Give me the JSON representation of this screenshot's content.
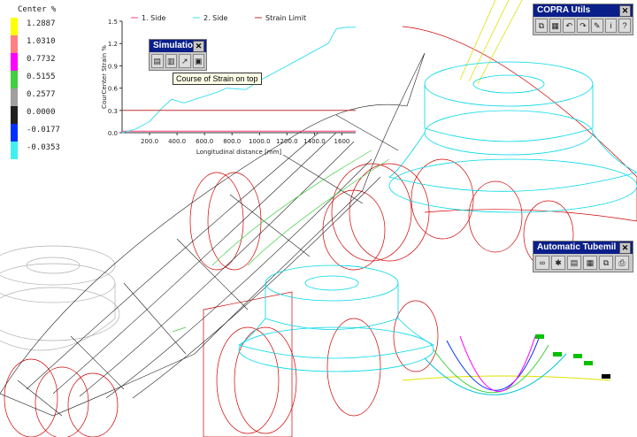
{
  "legend": {
    "title": "Center %",
    "items": [
      {
        "value": "1.2887",
        "color": "#ffff00"
      },
      {
        "value": "1.0310",
        "color": "#ff8080"
      },
      {
        "value": "0.7732",
        "color": "#ff00ff"
      },
      {
        "value": "0.5155",
        "color": "#40d040"
      },
      {
        "value": "0.2577",
        "color": "#a0a0a0"
      },
      {
        "value": "0.0000",
        "color": "#202020"
      },
      {
        "value": "-0.0177",
        "color": "#0030ff"
      },
      {
        "value": "-0.0353",
        "color": "#40f0f0"
      }
    ]
  },
  "chart_data": {
    "type": "line",
    "title": "",
    "xlabel": "Longitudinal distance [mm]",
    "ylabel": "CourCenter Strain %",
    "xlim": [
      0,
      1700
    ],
    "ylim": [
      0,
      1.5
    ],
    "xticks": [
      "200.0",
      "400.0",
      "600.0",
      "800.0",
      "1000.0",
      "1200.0",
      "1400.0",
      "1600"
    ],
    "yticks": [
      "0.0",
      "0.3",
      "0.6",
      "0.9",
      "1.2",
      "1.5"
    ],
    "grid": false,
    "legend_position": "top",
    "series": [
      {
        "name": "1. Side",
        "color": "#ff4080",
        "x": [
          0,
          300,
          600,
          900,
          1200,
          1500,
          1700
        ],
        "y": [
          0.02,
          0.02,
          0.02,
          0.02,
          0.02,
          0.02,
          0.02
        ]
      },
      {
        "name": "2. Side",
        "color": "#40e0f0",
        "x": [
          0,
          100,
          200,
          300,
          360,
          450,
          700,
          760,
          900,
          1000,
          1100,
          1200,
          1300,
          1400,
          1500,
          1560,
          1640,
          1700
        ],
        "y": [
          0.0,
          0.05,
          0.15,
          0.35,
          0.45,
          0.4,
          0.55,
          0.6,
          0.58,
          0.7,
          0.8,
          0.9,
          1.0,
          1.1,
          1.2,
          1.4,
          1.42,
          1.42
        ]
      },
      {
        "name": "Strain Limit",
        "color": "#c03030",
        "x": [
          0,
          1700
        ],
        "y": [
          0.3,
          0.3
        ]
      }
    ]
  },
  "simulation": {
    "title": "Simulation",
    "tooltip": "Course of Strain on top"
  },
  "copra": {
    "title": "COPRA Utils"
  },
  "tubemill": {
    "title": "Automatic Tubemil"
  },
  "colors": {
    "mesh_black": "#222222",
    "roll_red": "#d00000",
    "roll_cyan": "#00d8e8",
    "roll_gray": "#b0b0b0",
    "titlebar": "#0a1f8a"
  }
}
